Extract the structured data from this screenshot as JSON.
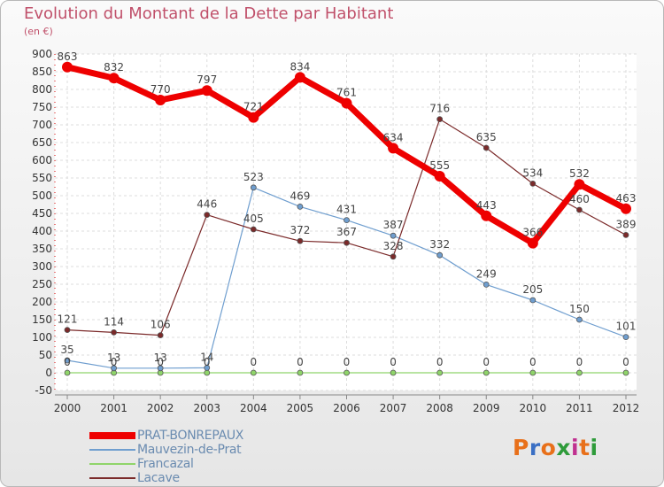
{
  "title": "Evolution du Montant de la Dette par Habitant",
  "subtitle": "(en €)",
  "logo": {
    "text": "Proxiti",
    "colors": [
      "#e8701a",
      "#3a6fc4",
      "#e8701a",
      "#2e9b3a",
      "#c03090",
      "#e8701a",
      "#2e9b3a"
    ]
  },
  "chart_data": {
    "type": "line",
    "x": [
      "2000",
      "2001",
      "2002",
      "2003",
      "2004",
      "2005",
      "2006",
      "2007",
      "2008",
      "2009",
      "2010",
      "2011",
      "2012"
    ],
    "ylim": [
      -50,
      900
    ],
    "yticks": [
      -50,
      0,
      50,
      100,
      150,
      200,
      250,
      300,
      350,
      400,
      450,
      500,
      550,
      600,
      650,
      700,
      750,
      800,
      850,
      900
    ],
    "grid": true,
    "legend_position": "bottom-left",
    "series": [
      {
        "name": "PRAT-BONREPAUX",
        "color": "#ee0000",
        "width": 7,
        "marker": 6,
        "values": [
          863,
          832,
          770,
          797,
          721,
          834,
          761,
          634,
          555,
          443,
          366,
          532,
          463
        ],
        "labels": [
          "863",
          "832",
          "770",
          "797",
          "721",
          "834",
          "761",
          "634",
          "555",
          "443",
          "366",
          "532",
          "463"
        ]
      },
      {
        "name": "Mauvezin-de-Prat",
        "color": "#6f9ecf",
        "width": 1.2,
        "marker": 3,
        "values": [
          35,
          13,
          13,
          14,
          523,
          469,
          431,
          387,
          332,
          249,
          205,
          150,
          101
        ],
        "labels": [
          "35",
          "13",
          "13",
          "14",
          "523",
          "469",
          "431",
          "387",
          "332",
          "249",
          "205",
          "150",
          "101"
        ]
      },
      {
        "name": "Francazal",
        "color": "#8fd46a",
        "width": 1.2,
        "marker": 3,
        "values": [
          0,
          0,
          0,
          0,
          0,
          0,
          0,
          0,
          0,
          0,
          0,
          0,
          0
        ],
        "labels": [
          "0",
          "0",
          "0",
          "0",
          "0",
          "0",
          "0",
          "0",
          "0",
          "0",
          "0",
          "0",
          "0"
        ]
      },
      {
        "name": "Lacave",
        "color": "#7b2a2a",
        "width": 1.2,
        "marker": 3,
        "values": [
          121,
          114,
          106,
          446,
          405,
          372,
          367,
          328,
          716,
          635,
          534,
          460,
          389
        ],
        "labels": [
          "121",
          "114",
          "106",
          "446",
          "405",
          "372",
          "367",
          "328",
          "716",
          "635",
          "534",
          "460",
          "389"
        ]
      }
    ]
  }
}
